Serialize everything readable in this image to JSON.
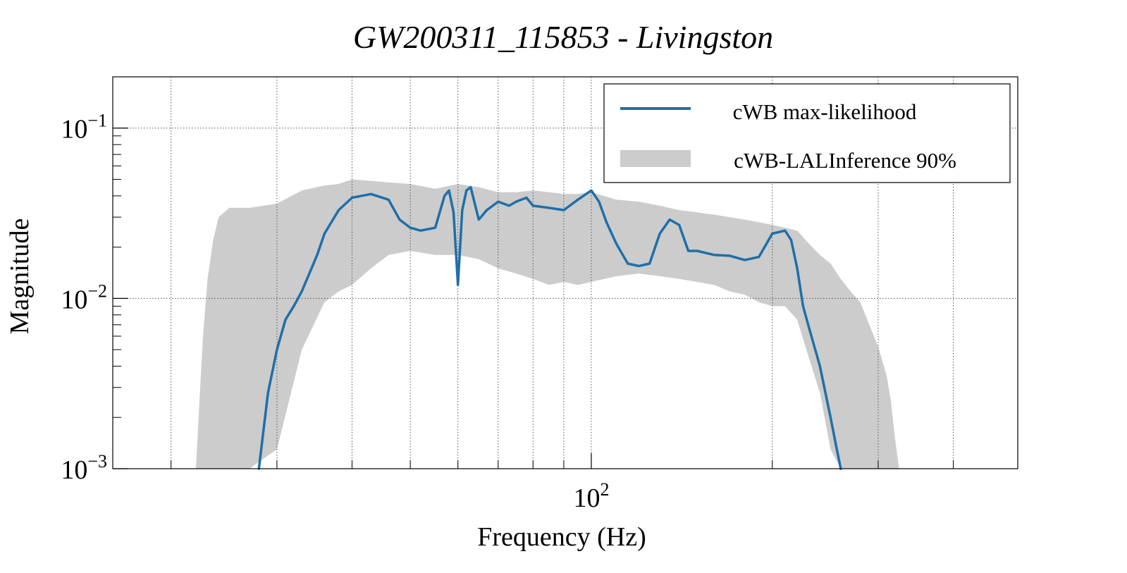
{
  "chart_data": {
    "type": "line",
    "title": "GW200311_115853 - Livingston",
    "xlabel": "Frequency (Hz)",
    "ylabel": "Magnitude",
    "xscale": "log",
    "yscale": "log",
    "xlim": [
      16,
      512
    ],
    "ylim": [
      0.001,
      0.2
    ],
    "grid": true,
    "legend_position": "top-right",
    "x_ticks": [
      {
        "base": "10",
        "exp": "2",
        "value": 100
      }
    ],
    "y_ticks": [
      {
        "base": "10",
        "exp": "−3",
        "value": 0.001
      },
      {
        "base": "10",
        "exp": "−2",
        "value": 0.01
      },
      {
        "base": "10",
        "exp": "−1",
        "value": 0.1
      }
    ],
    "x_gridlines": [
      20,
      30,
      40,
      50,
      60,
      70,
      80,
      90,
      100,
      200,
      300,
      400
    ],
    "colors": {
      "max_likelihood": "#1f6fa8",
      "band": "#cccccc"
    },
    "series": [
      {
        "name": "cWB max-likelihood",
        "kind": "line",
        "x": [
          28,
          29,
          30,
          31,
          32,
          33,
          35,
          36,
          38,
          40,
          43,
          46,
          48,
          50,
          52,
          55,
          57,
          58,
          59,
          60,
          61,
          62,
          63,
          64,
          65,
          67,
          70,
          73,
          75,
          78,
          80,
          85,
          90,
          95,
          100,
          103,
          106,
          110,
          115,
          120,
          125,
          130,
          135,
          140,
          145,
          150,
          160,
          170,
          180,
          190,
          200,
          210,
          215,
          220,
          225,
          230,
          240,
          250,
          255,
          260
        ],
        "y": [
          0.001,
          0.0028,
          0.005,
          0.0075,
          0.009,
          0.011,
          0.018,
          0.024,
          0.033,
          0.039,
          0.041,
          0.038,
          0.029,
          0.026,
          0.025,
          0.026,
          0.04,
          0.043,
          0.032,
          0.012,
          0.033,
          0.043,
          0.045,
          0.036,
          0.029,
          0.033,
          0.037,
          0.035,
          0.037,
          0.039,
          0.035,
          0.034,
          0.033,
          0.038,
          0.043,
          0.037,
          0.028,
          0.021,
          0.016,
          0.0155,
          0.016,
          0.024,
          0.029,
          0.027,
          0.019,
          0.019,
          0.018,
          0.0178,
          0.0168,
          0.0175,
          0.024,
          0.025,
          0.022,
          0.015,
          0.009,
          0.0068,
          0.004,
          0.002,
          0.0014,
          0.001
        ]
      },
      {
        "name": "cWB-LALInference 90%",
        "kind": "band",
        "x": [
          22,
          22.3,
          22.6,
          23,
          23.5,
          24,
          25,
          27,
          30,
          33,
          36,
          38,
          40,
          43,
          46,
          50,
          55,
          60,
          65,
          70,
          75,
          80,
          85,
          90,
          95,
          100,
          110,
          120,
          130,
          140,
          150,
          160,
          170,
          180,
          190,
          200,
          210,
          220,
          230,
          240,
          250,
          260,
          270,
          280,
          290,
          300,
          310,
          315,
          320,
          325
        ],
        "upper": [
          0.001,
          0.0025,
          0.006,
          0.013,
          0.022,
          0.03,
          0.034,
          0.034,
          0.036,
          0.043,
          0.046,
          0.047,
          0.05,
          0.049,
          0.048,
          0.047,
          0.044,
          0.047,
          0.045,
          0.042,
          0.042,
          0.043,
          0.042,
          0.041,
          0.041,
          0.042,
          0.038,
          0.037,
          0.035,
          0.033,
          0.032,
          0.031,
          0.03,
          0.029,
          0.028,
          0.027,
          0.026,
          0.025,
          0.021,
          0.018,
          0.016,
          0.013,
          0.011,
          0.0095,
          0.007,
          0.0052,
          0.0035,
          0.0025,
          0.0015,
          0.001
        ],
        "lower": [
          0.001,
          0.001,
          0.001,
          0.001,
          0.001,
          0.001,
          0.001,
          0.001,
          0.0013,
          0.005,
          0.0095,
          0.011,
          0.012,
          0.015,
          0.018,
          0.019,
          0.018,
          0.018,
          0.017,
          0.015,
          0.014,
          0.013,
          0.012,
          0.0125,
          0.012,
          0.0125,
          0.0135,
          0.014,
          0.0135,
          0.013,
          0.0125,
          0.012,
          0.011,
          0.0105,
          0.0095,
          0.009,
          0.009,
          0.0075,
          0.0045,
          0.0028,
          0.0013,
          0.001,
          0.001,
          0.001,
          0.001,
          0.001,
          0.001,
          0.001,
          0.001,
          0.001
        ]
      }
    ]
  }
}
